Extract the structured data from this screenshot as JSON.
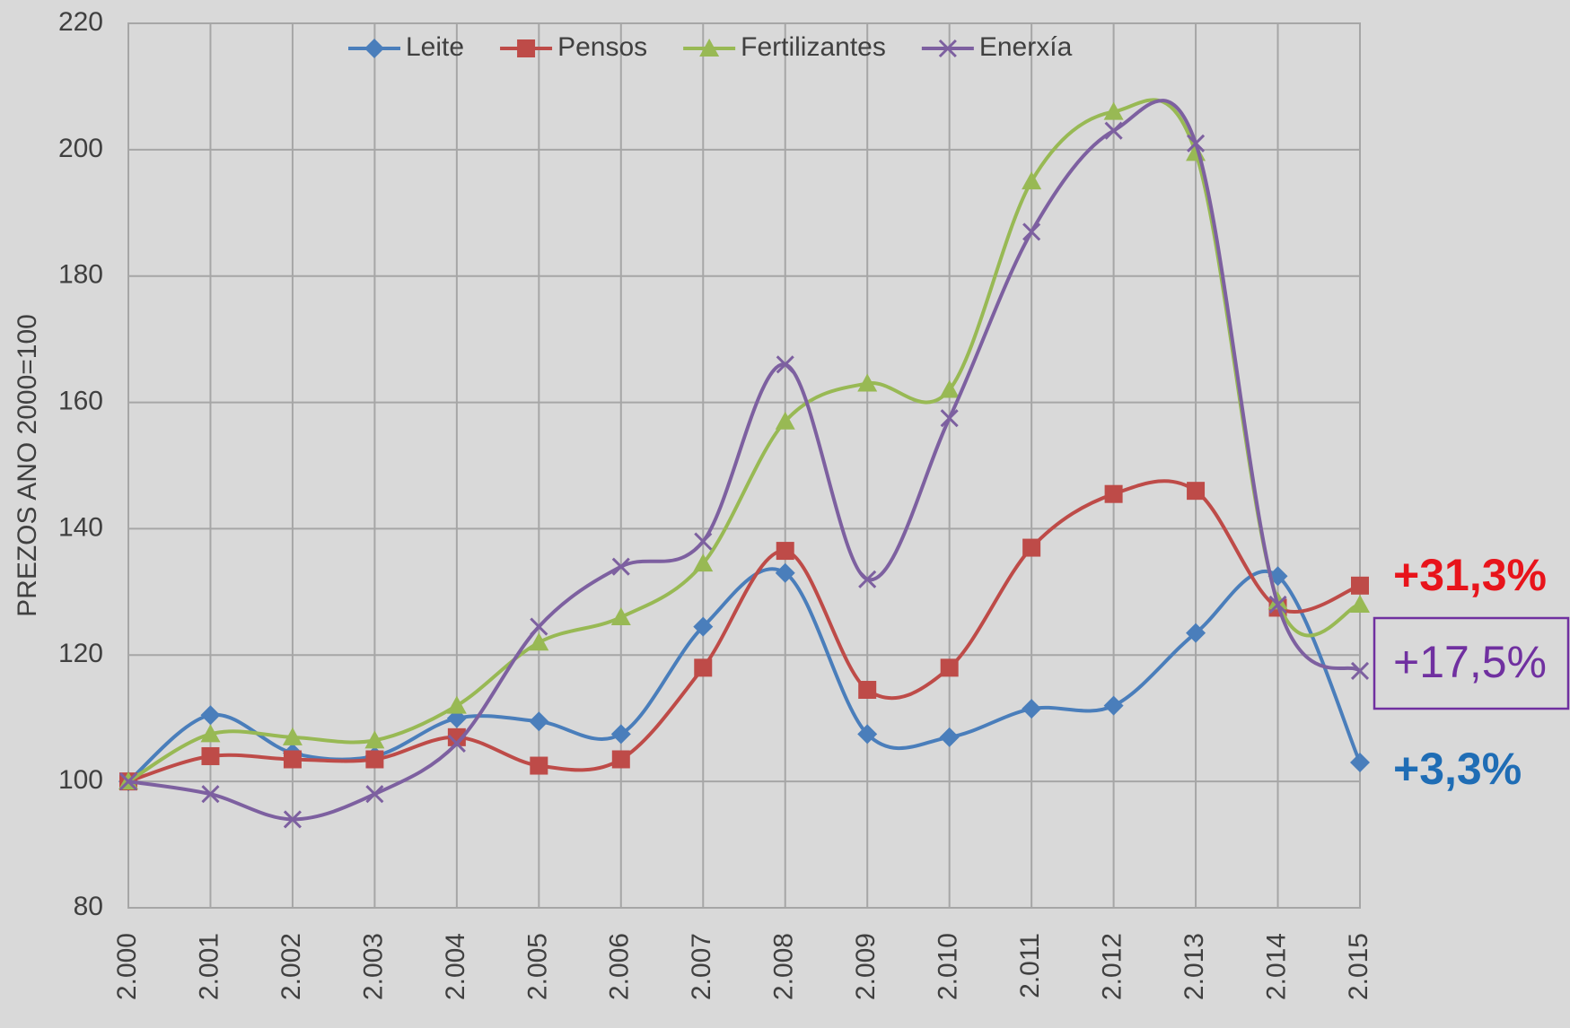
{
  "chart_data": {
    "type": "line",
    "y_label": "PREZOS ANO 2000=100",
    "categories": [
      "2.000",
      "2.001",
      "2.002",
      "2.003",
      "2.004",
      "2.005",
      "2.006",
      "2.007",
      "2.008",
      "2.009",
      "2.010",
      "2.011",
      "2.012",
      "2.013",
      "2.014",
      "2.015"
    ],
    "series": [
      {
        "name": "Leite",
        "color": "#4a7ebb",
        "marker": "diamond",
        "values": [
          100,
          110.5,
          104.5,
          104,
          110,
          109.5,
          107.5,
          124.5,
          133,
          107.5,
          107,
          111.5,
          112,
          123.5,
          132.5,
          103
        ]
      },
      {
        "name": "Pensos",
        "color": "#be4b48",
        "marker": "square",
        "values": [
          100,
          104,
          103.5,
          103.5,
          107,
          102.5,
          103.5,
          118,
          136.5,
          114.5,
          118,
          137,
          145.5,
          146,
          127.5,
          131
        ]
      },
      {
        "name": "Fertilizantes",
        "color": "#98b954",
        "marker": "triangle",
        "values": [
          100,
          107.5,
          107,
          106.5,
          112,
          122,
          126,
          134.5,
          157,
          163,
          162,
          195,
          206,
          199.5,
          128.5,
          128
        ]
      },
      {
        "name": "Enerxía",
        "color": "#7d60a0",
        "marker": "x",
        "values": [
          100,
          98,
          94,
          98,
          106,
          124.5,
          134,
          138,
          166,
          132,
          157.5,
          187,
          203,
          201,
          128,
          117.5
        ]
      }
    ],
    "ylim": [
      80,
      220
    ],
    "yticks": [
      80,
      100,
      120,
      140,
      160,
      180,
      200,
      220
    ],
    "grid": true,
    "smooth": true,
    "legend": "top",
    "annotations": [
      {
        "text": "+31,3%",
        "color": "#e8141b"
      },
      {
        "text": "+17,5%",
        "color": "#7030a0",
        "boxed": true
      },
      {
        "text": "+3,3%",
        "color": "#1f6db5"
      }
    ]
  }
}
